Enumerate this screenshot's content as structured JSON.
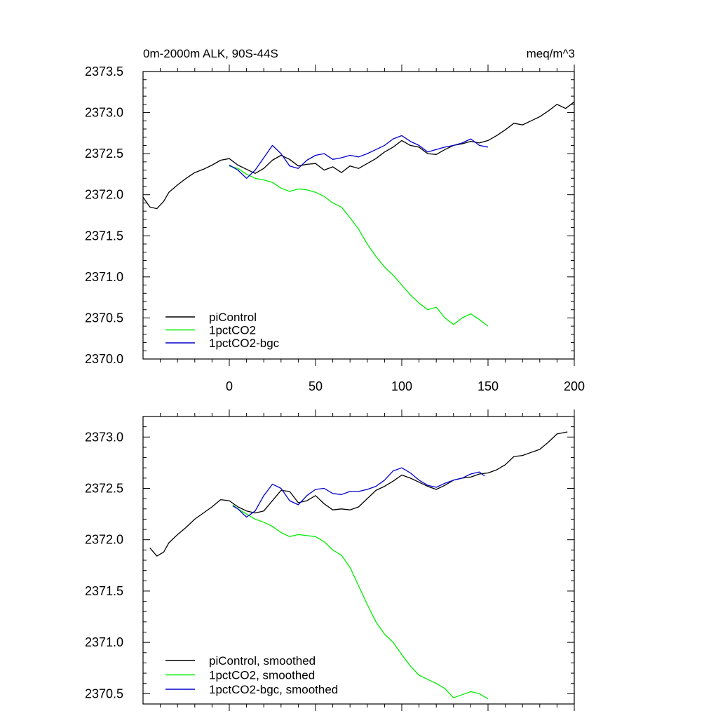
{
  "colors": {
    "piControl": "#000000",
    "1pctCO2": "#00ee00",
    "1pctCO2-bgc": "#0000cc"
  },
  "chart_data": [
    {
      "type": "line",
      "title": "0m-2000m ALK, 90S-44S",
      "units": "meq/m^3",
      "xlim": [
        -50,
        200
      ],
      "ylim": [
        2370.0,
        2373.5
      ],
      "xticks": [
        0,
        50,
        100,
        150,
        200
      ],
      "yticks": [
        2370.0,
        2370.5,
        2371.0,
        2371.5,
        2372.0,
        2372.5,
        2373.0,
        2373.5
      ],
      "xtick_labels": [
        "0",
        "50",
        "100",
        "150",
        "200"
      ],
      "ytick_labels": [
        "2370.0",
        "2370.5",
        "2371.0",
        "2371.5",
        "2372.0",
        "2372.5",
        "2373.0",
        "2373.5"
      ],
      "series": [
        {
          "name": "piControl",
          "color_key": "piControl",
          "x": [
            -50,
            -46,
            -42,
            -38,
            -35,
            -30,
            -25,
            -20,
            -15,
            -10,
            -5,
            0,
            5,
            10,
            15,
            20,
            25,
            30,
            35,
            40,
            45,
            50,
            55,
            60,
            65,
            70,
            75,
            80,
            85,
            90,
            95,
            100,
            105,
            110,
            115,
            120,
            125,
            130,
            135,
            140,
            145,
            150,
            155,
            160,
            165,
            170,
            175,
            180,
            185,
            190,
            195,
            200
          ],
          "y": [
            2371.97,
            2371.85,
            2371.83,
            2371.92,
            2372.03,
            2372.12,
            2372.2,
            2372.27,
            2372.31,
            2372.36,
            2372.42,
            2372.44,
            2372.36,
            2372.31,
            2372.26,
            2372.32,
            2372.42,
            2372.48,
            2372.43,
            2372.35,
            2372.37,
            2372.38,
            2372.3,
            2372.34,
            2372.27,
            2372.35,
            2372.32,
            2372.38,
            2372.44,
            2372.52,
            2372.58,
            2372.66,
            2372.6,
            2372.58,
            2372.5,
            2372.49,
            2372.55,
            2372.6,
            2372.62,
            2372.65,
            2372.63,
            2372.66,
            2372.72,
            2372.79,
            2372.87,
            2372.85,
            2372.9,
            2372.95,
            2373.02,
            2373.1,
            2373.05,
            2373.13
          ]
        },
        {
          "name": "1pctCO2",
          "color_key": "1pctCO2",
          "x": [
            0,
            5,
            10,
            15,
            20,
            25,
            30,
            35,
            40,
            45,
            50,
            55,
            60,
            65,
            70,
            75,
            80,
            85,
            90,
            95,
            100,
            105,
            110,
            115,
            120,
            125,
            130,
            135,
            140,
            145,
            150
          ],
          "y": [
            2372.35,
            2372.32,
            2372.25,
            2372.2,
            2372.18,
            2372.15,
            2372.08,
            2372.04,
            2372.07,
            2372.06,
            2372.03,
            2371.98,
            2371.9,
            2371.85,
            2371.72,
            2371.58,
            2371.4,
            2371.25,
            2371.12,
            2371.02,
            2370.9,
            2370.78,
            2370.68,
            2370.6,
            2370.63,
            2370.5,
            2370.42,
            2370.5,
            2370.55,
            2370.48,
            2370.4
          ]
        },
        {
          "name": "1pctCO2-bgc",
          "color_key": "1pctCO2-bgc",
          "x": [
            0,
            5,
            10,
            15,
            20,
            25,
            30,
            35,
            40,
            45,
            50,
            55,
            60,
            65,
            70,
            75,
            80,
            85,
            90,
            95,
            100,
            105,
            110,
            115,
            120,
            125,
            130,
            135,
            140,
            145,
            150
          ],
          "y": [
            2372.36,
            2372.3,
            2372.2,
            2372.3,
            2372.45,
            2372.6,
            2372.5,
            2372.35,
            2372.32,
            2372.42,
            2372.48,
            2372.5,
            2372.43,
            2372.45,
            2372.48,
            2372.46,
            2372.5,
            2372.55,
            2372.6,
            2372.68,
            2372.72,
            2372.65,
            2372.6,
            2372.52,
            2372.55,
            2372.58,
            2372.6,
            2372.63,
            2372.68,
            2372.6,
            2372.58
          ]
        }
      ],
      "legend": {
        "placement": "bottom-left",
        "entries": [
          "piControl",
          "1pctCO2",
          "1pctCO2-bgc"
        ]
      }
    },
    {
      "type": "line",
      "title": "",
      "xlim": [
        -50,
        200
      ],
      "ylim": [
        2370.4,
        2373.2
      ],
      "xticks": [
        0,
        50,
        100,
        150,
        200
      ],
      "yticks": [
        2370.5,
        2371.0,
        2371.5,
        2372.0,
        2372.5,
        2373.0
      ],
      "xtick_labels": [],
      "ytick_labels": [
        "2370.5",
        "2371.0",
        "2371.5",
        "2372.0",
        "2372.5",
        "2373.0"
      ],
      "series": [
        {
          "name": "piControl, smoothed",
          "color_key": "piControl",
          "x": [
            -46,
            -42,
            -38,
            -35,
            -30,
            -25,
            -20,
            -15,
            -10,
            -5,
            0,
            5,
            10,
            15,
            20,
            25,
            30,
            35,
            40,
            45,
            50,
            55,
            60,
            65,
            70,
            75,
            80,
            85,
            90,
            95,
            100,
            105,
            110,
            115,
            120,
            125,
            130,
            135,
            140,
            145,
            150,
            155,
            160,
            165,
            170,
            175,
            180,
            185,
            190,
            196
          ],
          "y": [
            2371.92,
            2371.84,
            2371.88,
            2371.97,
            2372.05,
            2372.12,
            2372.2,
            2372.26,
            2372.32,
            2372.39,
            2372.38,
            2372.32,
            2372.28,
            2372.26,
            2372.28,
            2372.38,
            2372.48,
            2372.47,
            2372.36,
            2372.38,
            2372.43,
            2372.35,
            2372.29,
            2372.3,
            2372.29,
            2372.32,
            2372.4,
            2372.48,
            2372.52,
            2372.57,
            2372.63,
            2372.6,
            2372.56,
            2372.52,
            2372.49,
            2372.53,
            2372.58,
            2372.6,
            2372.61,
            2372.64,
            2372.65,
            2372.68,
            2372.73,
            2372.81,
            2372.82,
            2372.85,
            2372.88,
            2372.95,
            2373.03,
            2373.05
          ]
        },
        {
          "name": "1pctCO2, smoothed",
          "color_key": "1pctCO2",
          "x": [
            2,
            5,
            10,
            15,
            20,
            25,
            30,
            35,
            40,
            45,
            50,
            55,
            60,
            65,
            70,
            75,
            80,
            85,
            90,
            95,
            100,
            105,
            110,
            115,
            120,
            125,
            130,
            135,
            140,
            145,
            150
          ],
          "y": [
            2372.34,
            2372.3,
            2372.25,
            2372.2,
            2372.17,
            2372.13,
            2372.07,
            2372.03,
            2372.05,
            2372.04,
            2372.03,
            2371.98,
            2371.9,
            2371.85,
            2371.73,
            2371.55,
            2371.37,
            2371.2,
            2371.08,
            2371.0,
            2370.88,
            2370.77,
            2370.68,
            2370.64,
            2370.6,
            2370.55,
            2370.46,
            2370.49,
            2370.52,
            2370.5,
            2370.45
          ]
        },
        {
          "name": "1pctCO2-bgc, smoothed",
          "color_key": "1pctCO2-bgc",
          "x": [
            2,
            5,
            10,
            15,
            20,
            25,
            30,
            35,
            40,
            45,
            50,
            55,
            60,
            65,
            70,
            75,
            80,
            85,
            90,
            95,
            100,
            105,
            110,
            115,
            120,
            125,
            130,
            135,
            140,
            145,
            148
          ],
          "y": [
            2372.33,
            2372.3,
            2372.22,
            2372.28,
            2372.43,
            2372.54,
            2372.5,
            2372.38,
            2372.34,
            2372.43,
            2372.49,
            2372.5,
            2372.45,
            2372.44,
            2372.47,
            2372.47,
            2372.49,
            2372.52,
            2372.58,
            2372.67,
            2372.7,
            2372.65,
            2372.58,
            2372.53,
            2372.51,
            2372.55,
            2372.58,
            2372.6,
            2372.64,
            2372.66,
            2372.62
          ]
        }
      ],
      "legend": {
        "placement": "bottom-left",
        "entries": [
          "piControl, smoothed",
          "1pctCO2, smoothed",
          "1pctCO2-bgc, smoothed"
        ]
      }
    }
  ]
}
